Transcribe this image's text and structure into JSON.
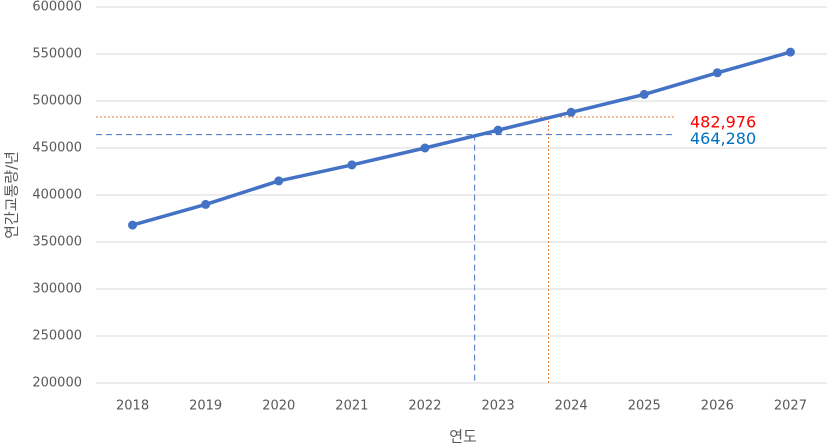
{
  "chart_data": {
    "type": "line",
    "x_label": "연도",
    "y_label": "연간교통량/년",
    "x": [
      2018,
      2019,
      2020,
      2021,
      2022,
      2023,
      2024,
      2025,
      2026,
      2027
    ],
    "series": [
      {
        "color": "#4472c4",
        "values": [
          368000,
          390000,
          415000,
          432000,
          450000,
          469000,
          488000,
          507000,
          530000,
          552000
        ]
      }
    ],
    "xlim": [
      2017.5,
      2027.5
    ],
    "xticks": [
      2018,
      2019,
      2020,
      2021,
      2022,
      2023,
      2024,
      2025,
      2026,
      2027
    ],
    "ylim": [
      200000,
      600000
    ],
    "yticks": [
      200000,
      250000,
      300000,
      350000,
      400000,
      450000,
      500000,
      550000,
      600000
    ],
    "grid": true,
    "references": [
      {
        "value": 482976,
        "label": "482,976",
        "x": 2023.69,
        "color": "#ed7d31",
        "label_color": "#ff0000",
        "dash": "2,2"
      },
      {
        "value": 464280,
        "label": "464,280",
        "x": 2022.68,
        "color": "#4472c4",
        "label_color": "#0070c0",
        "dash": "6,4"
      }
    ]
  }
}
